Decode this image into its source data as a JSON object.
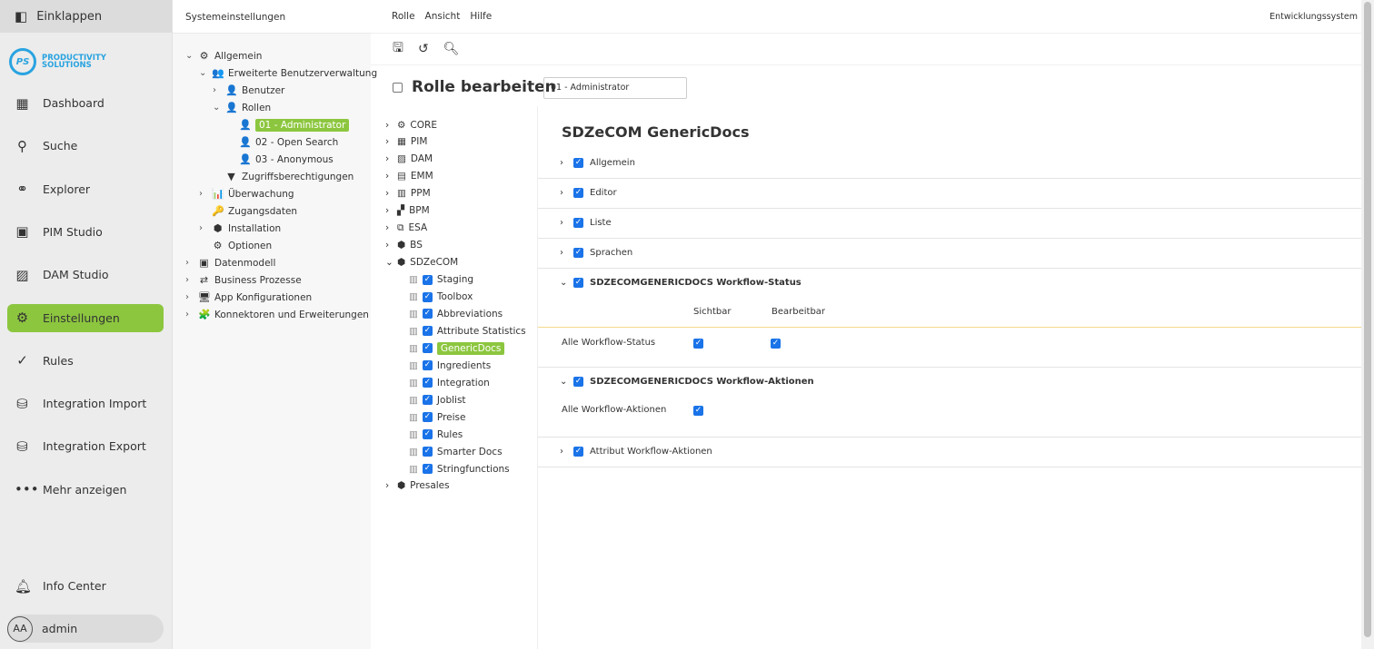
{
  "nav": {
    "collapse": "Einklappen",
    "logo": "PRODUCTIVITY SOLUTIONS",
    "logo_mark": "PS",
    "items": [
      {
        "label": "Dashboard",
        "icon": "dashboard-icon",
        "g": "▦"
      },
      {
        "label": "Suche",
        "icon": "search-icon",
        "g": "⚲"
      },
      {
        "label": "Explorer",
        "icon": "explorer-icon",
        "g": "⚭"
      },
      {
        "label": "PIM Studio",
        "icon": "pim-icon",
        "g": "▣"
      },
      {
        "label": "DAM Studio",
        "icon": "image-icon",
        "g": "▨"
      },
      {
        "label": "Einstellungen",
        "icon": "gear-icon",
        "g": "⚙",
        "active": true
      },
      {
        "label": "Rules",
        "icon": "check-circle-icon",
        "g": "✓"
      },
      {
        "label": "Integration Import",
        "icon": "import-icon",
        "g": "⛁"
      },
      {
        "label": "Integration Export",
        "icon": "export-icon",
        "g": "⛁"
      },
      {
        "label": "Mehr anzeigen",
        "icon": "more-icon",
        "g": "•••"
      }
    ],
    "info": "Info Center",
    "user": "admin",
    "avatar": "AA"
  },
  "tree": {
    "header": "Systemeinstellungen",
    "items": [
      {
        "label": "Allgemein",
        "d": 0,
        "ch": "v",
        "g": "⚙"
      },
      {
        "label": "Erweiterte Benutzerverwaltung",
        "d": 1,
        "ch": "v",
        "g": "👥"
      },
      {
        "label": "Benutzer",
        "d": 2,
        "ch": ">",
        "g": "👤"
      },
      {
        "label": "Rollen",
        "d": 2,
        "ch": "v",
        "g": "👤"
      },
      {
        "label": "01 - Administrator",
        "d": 3,
        "ch": "",
        "g": "👤",
        "sel": true
      },
      {
        "label": "02 - Open Search",
        "d": 3,
        "ch": "",
        "g": "👤"
      },
      {
        "label": "03 - Anonymous",
        "d": 3,
        "ch": "",
        "g": "👤"
      },
      {
        "label": "Zugriffsberechtigungen",
        "d": 2,
        "ch": "",
        "g": "▼"
      },
      {
        "label": "Überwachung",
        "d": 1,
        "ch": ">",
        "g": "📊"
      },
      {
        "label": "Zugangsdaten",
        "d": 1,
        "ch": "",
        "g": "🔑"
      },
      {
        "label": "Installation",
        "d": 1,
        "ch": ">",
        "g": "⬢"
      },
      {
        "label": "Optionen",
        "d": 1,
        "ch": "",
        "g": "⚙"
      },
      {
        "label": "Datenmodell",
        "d": 0,
        "ch": ">",
        "g": "▣"
      },
      {
        "label": "Business Prozesse",
        "d": 0,
        "ch": ">",
        "g": "⇄"
      },
      {
        "label": "App Konfigurationen",
        "d": 0,
        "ch": ">",
        "g": "🖥"
      },
      {
        "label": "Konnektoren und Erweiterungen",
        "d": 0,
        "ch": ">",
        "g": "🧩"
      }
    ]
  },
  "menu": [
    "Rolle",
    "Ansicht",
    "Hilfe"
  ],
  "environment": "Entwicklungssystem",
  "title": "Rolle bearbeiten",
  "role_value": "01 - Administrator",
  "modules": [
    {
      "label": "CORE",
      "ch": ">",
      "g": "⚙"
    },
    {
      "label": "PIM",
      "ch": ">",
      "g": "▦"
    },
    {
      "label": "DAM",
      "ch": ">",
      "g": "▨"
    },
    {
      "label": "EMM",
      "ch": ">",
      "g": "▤"
    },
    {
      "label": "PPM",
      "ch": ">",
      "g": "▥"
    },
    {
      "label": "BPM",
      "ch": ">",
      "g": "▞"
    },
    {
      "label": "ESA",
      "ch": ">",
      "g": "⧉"
    },
    {
      "label": "BS",
      "ch": ">",
      "g": "⬢"
    },
    {
      "label": "SDZeCOM",
      "ch": "v",
      "g": "⬢"
    },
    {
      "label": "Staging",
      "sub": true
    },
    {
      "label": "Toolbox",
      "sub": true
    },
    {
      "label": "Abbreviations",
      "sub": true
    },
    {
      "label": "Attribute Statistics",
      "sub": true
    },
    {
      "label": "GenericDocs",
      "sub": true,
      "sel": true
    },
    {
      "label": "Ingredients",
      "sub": true
    },
    {
      "label": "Integration",
      "sub": true
    },
    {
      "label": "Joblist",
      "sub": true
    },
    {
      "label": "Preise",
      "sub": true
    },
    {
      "label": "Rules",
      "sub": true
    },
    {
      "label": "Smarter Docs",
      "sub": true
    },
    {
      "label": "Stringfunctions",
      "sub": true
    },
    {
      "label": "Presales",
      "ch": ">",
      "g": "⬢"
    }
  ],
  "detail": {
    "title": "SDZeCOM GenericDocs",
    "sections": [
      "Allgemein",
      "Editor",
      "Liste",
      "Sprachen"
    ],
    "status": {
      "title": "SDZECOMGENERICDOCS Workflow-Status",
      "col1": "Sichtbar",
      "col2": "Bearbeitbar",
      "row": "Alle Workflow-Status"
    },
    "actions": {
      "title": "SDZECOMGENERICDOCS Workflow-Aktionen",
      "row": "Alle Workflow-Aktionen"
    },
    "attr": "Attribut Workflow-Aktionen"
  },
  "colors": {
    "accent": "#8cc63f",
    "checkbox": "#1a73e8"
  }
}
